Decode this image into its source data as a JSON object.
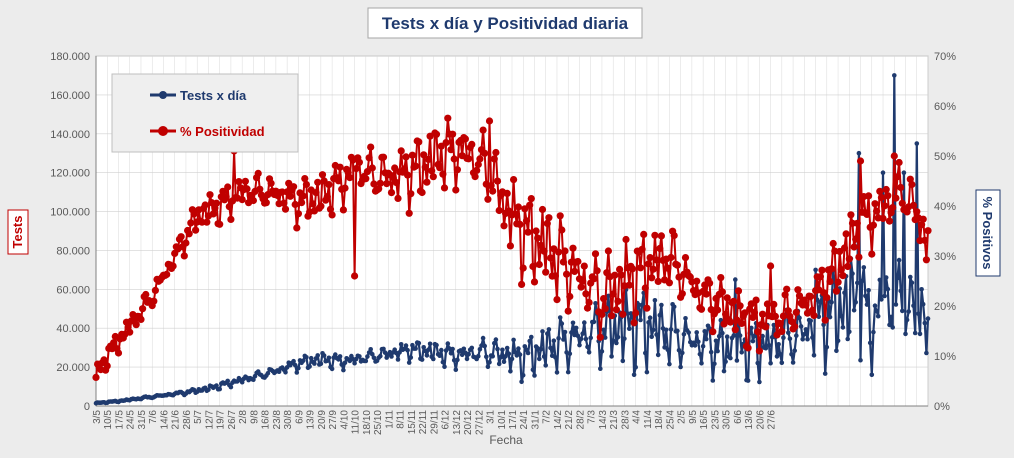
{
  "chart_data": {
    "type": "line",
    "title": "Tests x día y Positividad  diaria",
    "xlabel": "Fecha",
    "ylabel": "Tests",
    "y2label": "% Positivos",
    "x_ticks": [
      "3/5",
      "10/5",
      "17/5",
      "24/5",
      "31/5",
      "7/6",
      "14/6",
      "21/6",
      "28/6",
      "5/7",
      "12/7",
      "19/7",
      "26/7",
      "2/8",
      "9/8",
      "16/8",
      "23/8",
      "30/8",
      "6/9",
      "13/9",
      "20/9",
      "27/9",
      "4/10",
      "11/10",
      "18/10",
      "25/10",
      "1/11",
      "8/11",
      "15/11",
      "22/11",
      "29/11",
      "6/12",
      "13/12",
      "20/12",
      "27/12",
      "3/1",
      "10/1",
      "17/1",
      "24/1",
      "31/1",
      "7/2",
      "14/2",
      "21/2",
      "28/2",
      "7/3",
      "14/3",
      "21/3",
      "28/3",
      "4/4",
      "11/4",
      "18/4",
      "25/4",
      "2/5",
      "9/5",
      "16/5",
      "23/5",
      "30/5",
      "6/6",
      "13/6",
      "20/6",
      "27/6"
    ],
    "y_ticks": [
      "0",
      "20.000",
      "40.000",
      "60.000",
      "80.000",
      "100.000",
      "120.000",
      "140.000",
      "160.000",
      "180.000"
    ],
    "y2_ticks": [
      "0%",
      "10%",
      "20%",
      "30%",
      "40%",
      "50%",
      "60%",
      "70%"
    ],
    "ylim": [
      0,
      180000
    ],
    "y2lim": [
      0,
      0.7
    ],
    "legend_position": "top-left",
    "grid": true,
    "series": [
      {
        "name": "Tests x día",
        "axis": "left",
        "color": "#1f3a6e",
        "anchors": [
          [
            0,
            1500
          ],
          [
            14,
            2500
          ],
          [
            28,
            4000
          ],
          [
            42,
            5500
          ],
          [
            56,
            7000
          ],
          [
            70,
            9000
          ],
          [
            84,
            12000
          ],
          [
            98,
            15000
          ],
          [
            112,
            18000
          ],
          [
            126,
            22000
          ],
          [
            140,
            24000
          ],
          [
            154,
            23000
          ],
          [
            168,
            25000
          ],
          [
            182,
            27000
          ],
          [
            196,
            29000
          ],
          [
            210,
            28000
          ],
          [
            224,
            26000
          ],
          [
            238,
            28000
          ],
          [
            252,
            27000
          ],
          [
            266,
            25000
          ],
          [
            280,
            30000
          ],
          [
            294,
            34000
          ],
          [
            308,
            38000
          ],
          [
            322,
            40000
          ],
          [
            336,
            42000
          ],
          [
            350,
            40000
          ],
          [
            364,
            36000
          ],
          [
            378,
            32000
          ],
          [
            392,
            30000
          ],
          [
            406,
            30000
          ],
          [
            420,
            32000
          ],
          [
            434,
            36000
          ],
          [
            448,
            42000
          ],
          [
            462,
            50000
          ],
          [
            476,
            56000
          ],
          [
            483,
            40000
          ],
          [
            490,
            56000
          ],
          [
            497,
            50000
          ],
          [
            504,
            55000
          ],
          [
            511,
            45000
          ],
          [
            518,
            47000
          ]
        ],
        "amplitude": [
          [
            0,
            0.1
          ],
          [
            200,
            0.12
          ],
          [
            300,
            0.35
          ],
          [
            420,
            0.35
          ],
          [
            518,
            0.35
          ]
        ],
        "spikes": [
          [
            286,
            25000
          ],
          [
            398,
            65000
          ],
          [
            448,
            70000
          ],
          [
            475,
            130000
          ],
          [
            490,
            120000
          ],
          [
            497,
            170000
          ],
          [
            503,
            120000
          ],
          [
            511,
            135000
          ],
          [
            514,
            60000
          ]
        ]
      },
      {
        "name": "% Positividad",
        "axis": "right",
        "color": "#c00000",
        "anchors": [
          [
            0,
            0.06
          ],
          [
            7,
            0.1
          ],
          [
            14,
            0.13
          ],
          [
            21,
            0.16
          ],
          [
            28,
            0.19
          ],
          [
            35,
            0.22
          ],
          [
            42,
            0.26
          ],
          [
            49,
            0.3
          ],
          [
            56,
            0.34
          ],
          [
            63,
            0.38
          ],
          [
            77,
            0.4
          ],
          [
            91,
            0.43
          ],
          [
            105,
            0.43
          ],
          [
            119,
            0.42
          ],
          [
            126,
            0.41
          ],
          [
            140,
            0.42
          ],
          [
            154,
            0.45
          ],
          [
            161,
            0.48
          ],
          [
            175,
            0.46
          ],
          [
            189,
            0.46
          ],
          [
            203,
            0.48
          ],
          [
            217,
            0.51
          ],
          [
            231,
            0.51
          ],
          [
            245,
            0.47
          ],
          [
            252,
            0.42
          ],
          [
            259,
            0.38
          ],
          [
            266,
            0.35
          ],
          [
            280,
            0.32
          ],
          [
            294,
            0.28
          ],
          [
            308,
            0.24
          ],
          [
            315,
            0.22
          ],
          [
            329,
            0.25
          ],
          [
            343,
            0.28
          ],
          [
            357,
            0.3
          ],
          [
            364,
            0.27
          ],
          [
            378,
            0.22
          ],
          [
            392,
            0.2
          ],
          [
            406,
            0.17
          ],
          [
            420,
            0.17
          ],
          [
            434,
            0.19
          ],
          [
            448,
            0.22
          ],
          [
            462,
            0.28
          ],
          [
            476,
            0.36
          ],
          [
            490,
            0.4
          ],
          [
            504,
            0.43
          ],
          [
            511,
            0.38
          ],
          [
            518,
            0.34
          ]
        ],
        "amplitude": [
          [
            0,
            0.015
          ],
          [
            150,
            0.04
          ],
          [
            300,
            0.08
          ],
          [
            400,
            0.04
          ],
          [
            518,
            0.06
          ]
        ],
        "spikes": [
          [
            86,
            0.51
          ],
          [
            161,
            0.26
          ],
          [
            245,
            0.57
          ],
          [
            420,
            0.28
          ],
          [
            476,
            0.49
          ],
          [
            497,
            0.5
          ]
        ]
      }
    ]
  }
}
